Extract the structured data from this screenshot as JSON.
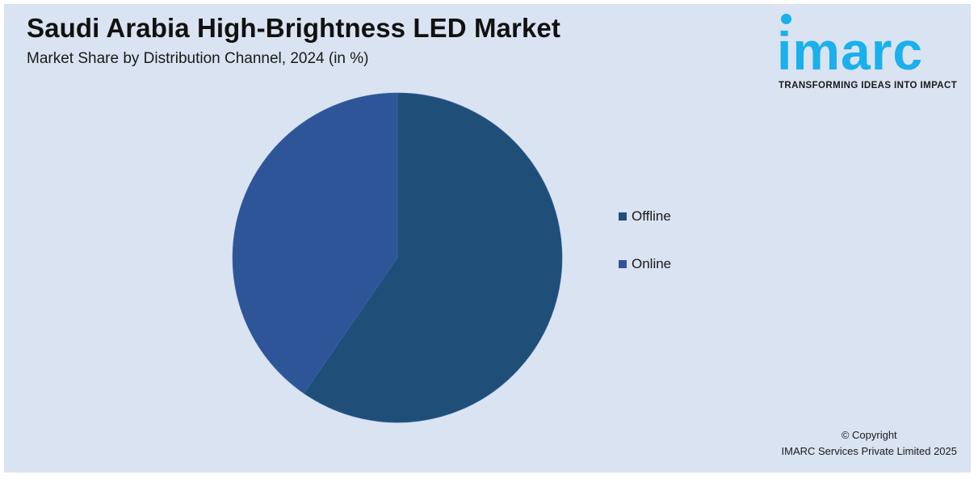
{
  "header": {
    "title": "Saudi Arabia High-Brightness LED Market",
    "subtitle": "Market Share by Distribution Channel, 2024 (in %)"
  },
  "logo": {
    "wordmark": "imarc",
    "tagline": "TRANSFORMING IDEAS INTO IMPACT",
    "color": "#1ab0ec"
  },
  "chart_data": {
    "type": "pie",
    "title": "Saudi Arabia High-Brightness LED Market",
    "subtitle": "Market Share by Distribution Channel, 2024 (in %)",
    "categories": [
      "Offline",
      "Online"
    ],
    "values": [
      59.6,
      40.4
    ],
    "colors": [
      "#1f4e79",
      "#2e5597"
    ],
    "legend_position": "right",
    "data_labels": false
  },
  "footer": {
    "copyright_line1": "© Copyright",
    "copyright_line2": "IMARC Services Private Limited 2025"
  },
  "colors": {
    "background": "#dae3f1",
    "offline": "#1f4e79",
    "online": "#2e5597"
  }
}
